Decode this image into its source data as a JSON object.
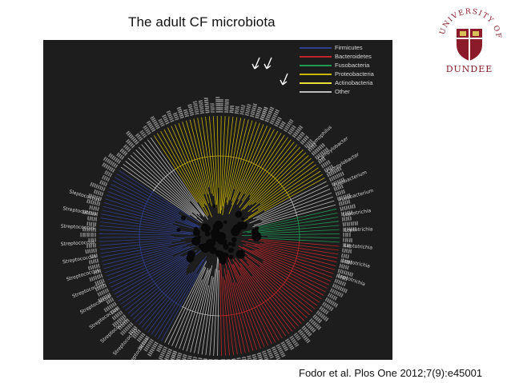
{
  "slide": {
    "title": "The adult CF microbiota",
    "citation": "Fodor et al. Plos One 2012;7(9):e45001"
  },
  "logo": {
    "top_text": "UNIVERSITY OF",
    "name": "DUNDEE",
    "color": "#8b1a2a"
  },
  "figure": {
    "background": "#1d1d1d",
    "legend": [
      {
        "label": "Firmicutes",
        "color": "#2f3f8f"
      },
      {
        "label": "Bacteroidetes",
        "color": "#c0252a"
      },
      {
        "label": "Fusobacteria",
        "color": "#1f9a55"
      },
      {
        "label": "Proteobacteria",
        "color": "#c9b400"
      },
      {
        "label": "Actinobacteria",
        "color": "#e8e23a"
      },
      {
        "label": "Other",
        "color": "#bdbdbd"
      }
    ],
    "side_labels": [
      "Sleptococcus",
      "Streptococcus",
      "Streptococcus",
      "Streptococcus",
      "Streptococcus",
      "Streptococcus",
      "Streptococcus",
      "Streptococcus",
      "Streptococcus",
      "Streptococcus",
      "Streptococcus",
      "Streptococcus",
      "Haemophilus",
      "Campylobacter",
      "Campylobacter",
      "Fusobacterium",
      "Fusobacterium",
      "Leptotrichia",
      "Leptotrichia",
      "Leptotrichia",
      "Leptotrichia",
      "Leptotrichia"
    ]
  }
}
